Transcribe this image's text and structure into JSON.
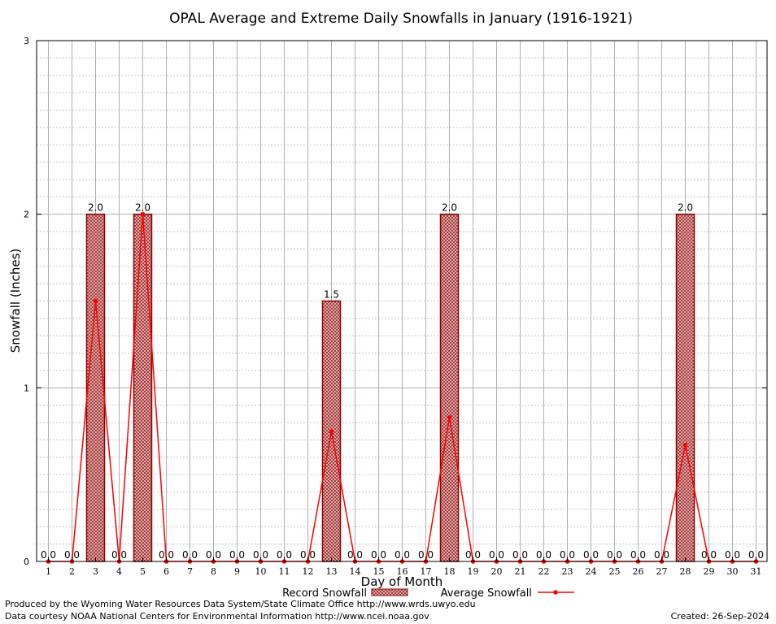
{
  "chart_data": {
    "type": "bar",
    "title": "OPAL Average and Extreme Daily Snowfalls in January (1916-1921)",
    "xlabel": "Day of Month",
    "ylabel": "Snowfall (Inches)",
    "ylim": [
      0,
      3
    ],
    "y_ticks": [
      "0",
      "1",
      "2",
      "3"
    ],
    "categories": [
      "1",
      "2",
      "3",
      "4",
      "5",
      "6",
      "7",
      "8",
      "9",
      "10",
      "11",
      "12",
      "13",
      "14",
      "15",
      "16",
      "17",
      "18",
      "19",
      "20",
      "21",
      "22",
      "23",
      "24",
      "25",
      "26",
      "27",
      "28",
      "29",
      "30",
      "31"
    ],
    "series": [
      {
        "name": "Record Snowfall",
        "type": "bar",
        "values": [
          0,
          0,
          2.0,
          0,
          2.0,
          0,
          0,
          0,
          0,
          0,
          0,
          0,
          1.5,
          0,
          0,
          0,
          0,
          2.0,
          0,
          0,
          0,
          0,
          0,
          0,
          0,
          0,
          0,
          2.0,
          0,
          0,
          0
        ]
      },
      {
        "name": "Average Snowfall",
        "type": "line",
        "values": [
          0,
          0,
          1.5,
          0,
          2.0,
          0,
          0,
          0,
          0,
          0,
          0,
          0,
          0.75,
          0,
          0,
          0,
          0,
          0.83,
          0,
          0,
          0,
          0,
          0,
          0,
          0,
          0,
          0,
          0.67,
          0,
          0,
          0
        ]
      }
    ],
    "data_labels": [
      "0.0",
      "0.0",
      "2.0",
      "0.0",
      "2.0",
      "0.0",
      "0.0",
      "0.0",
      "0.0",
      "0.0",
      "0.0",
      "0.0",
      "1.5",
      "0.0",
      "0.0",
      "0.0",
      "0.0",
      "2.0",
      "0.0",
      "0.0",
      "0.0",
      "0.0",
      "0.0",
      "0.0",
      "0.0",
      "0.0",
      "0.0",
      "2.0",
      "0.0",
      "0.0",
      "0.0"
    ],
    "grid": true,
    "legend_position": "bottom-center",
    "colors": {
      "bar_fill": "#c87878",
      "bar_edge": "#8b0000",
      "line": "#ff0000",
      "grid_major": "#b0b0b0",
      "grid_minor": "#c8c8c8"
    }
  },
  "footer": {
    "credit_line1": "Produced by the Wyoming Water Resources Data System/State Climate Office http://www.wrds.uwyo.edu",
    "credit_line2": "Data courtesy NOAA National Centers for Environmental Information http://www.ncei.noaa.gov",
    "created": "Created:  26-Sep-2024"
  }
}
